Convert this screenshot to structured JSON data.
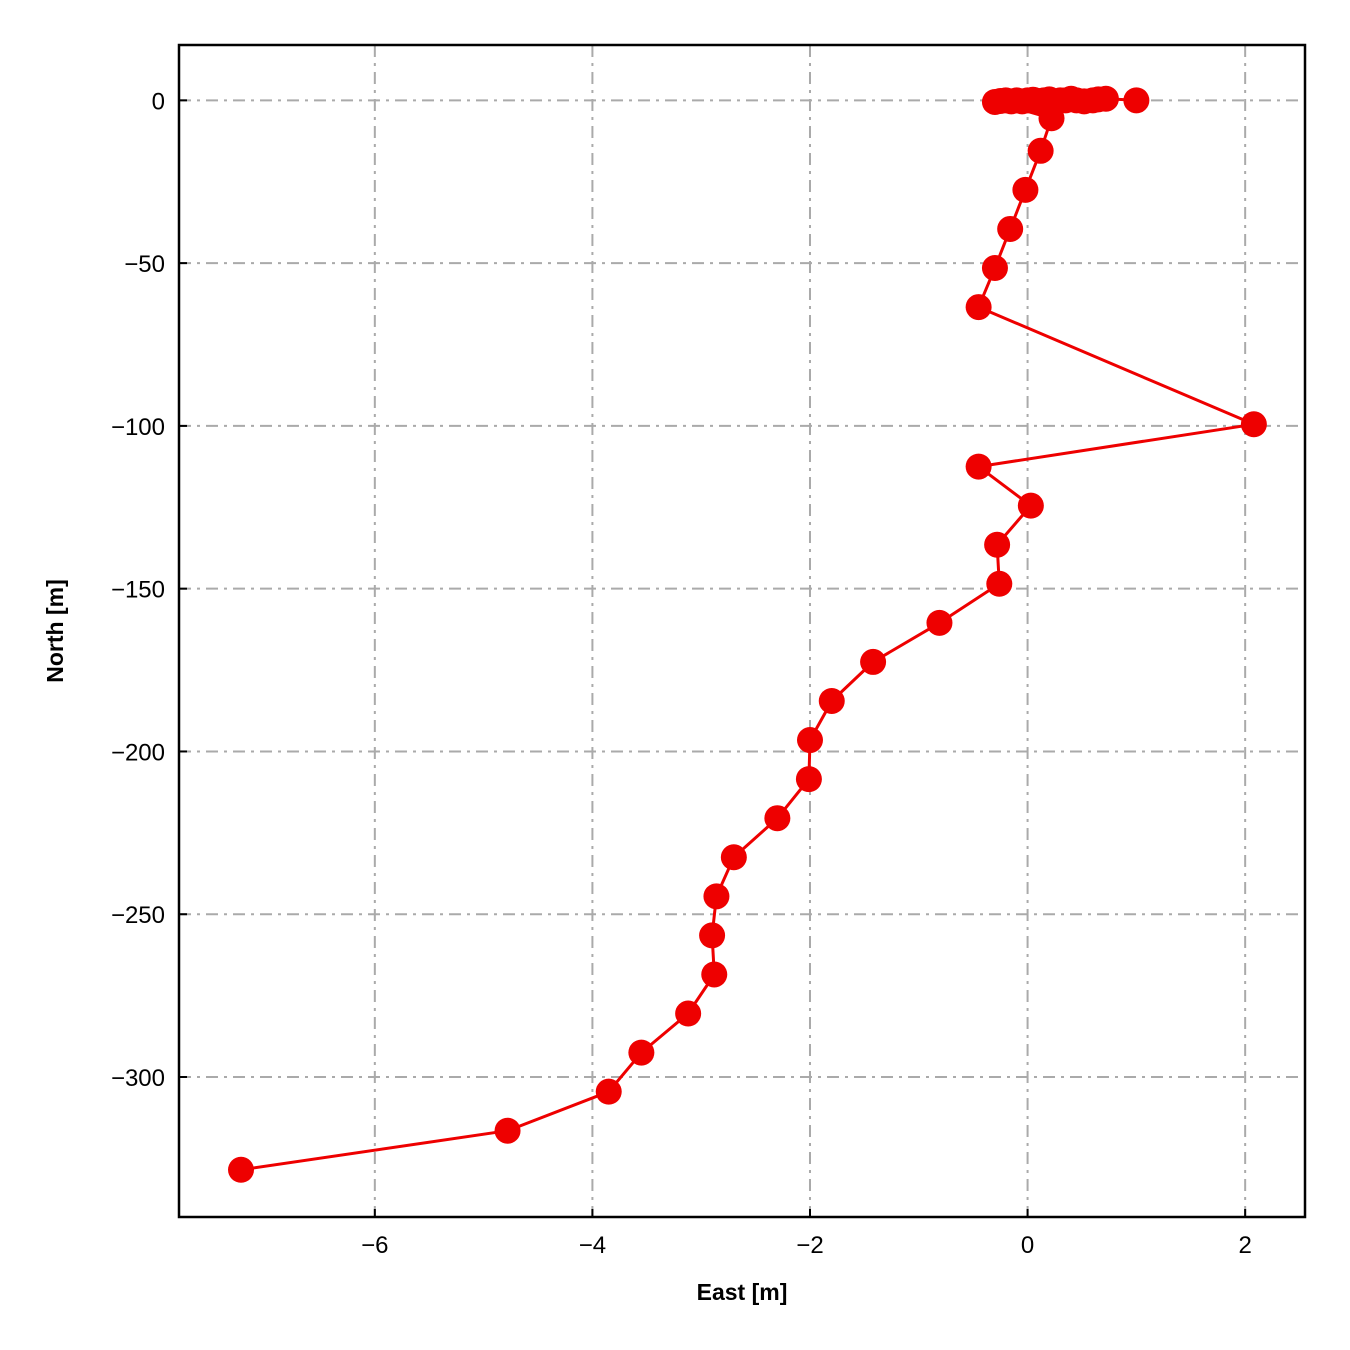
{
  "chart_data": {
    "type": "line",
    "title": "",
    "xlabel": "East [m]",
    "ylabel": "North [m]",
    "xlim": [
      -7.8,
      2.55
    ],
    "ylim": [
      -343,
      17
    ],
    "xticks": [
      -6,
      -4,
      -2,
      0,
      2
    ],
    "yticks": [
      0,
      -50,
      -100,
      -150,
      -200,
      -250,
      -300
    ],
    "xtick_labels": [
      "−6",
      "−4",
      "−2",
      "0",
      "2"
    ],
    "ytick_labels": [
      "0",
      "−50",
      "−100",
      "−150",
      "−200",
      "−250",
      "−300"
    ],
    "grid": true,
    "color": "#ee0000",
    "series": [
      {
        "x": [
          1.0,
          0.72,
          0.65,
          0.6,
          0.52,
          0.45,
          0.4,
          0.35,
          0.3,
          0.25,
          0.2,
          0.15,
          0.1,
          0.05,
          0.0,
          -0.05,
          -0.1,
          -0.15,
          -0.2,
          -0.25,
          -0.3,
          0.22,
          0.12,
          -0.02,
          -0.16,
          -0.3,
          -0.45,
          2.08,
          -0.45,
          0.03,
          -0.28,
          -0.26,
          -0.81,
          -1.42,
          -1.8,
          -2.0,
          -2.01,
          -2.3,
          -2.7,
          -2.86,
          -2.9,
          -2.88,
          -3.12,
          -3.55,
          -3.85,
          -4.78,
          -7.23
        ],
        "y": [
          0,
          0.5,
          0.3,
          0,
          -0.3,
          0,
          0.5,
          0,
          0,
          -0.3,
          0.3,
          0,
          -0.2,
          0.2,
          0,
          -0.3,
          0,
          -0.3,
          0,
          -0.2,
          -0.5,
          -5.5,
          -15.5,
          -27.5,
          -39.5,
          -51.5,
          -63.5,
          -99.5,
          -112.5,
          -124.5,
          -136.5,
          -148.5,
          -160.5,
          -172.5,
          -184.5,
          -196.5,
          -208.5,
          -220.5,
          -232.5,
          -244.5,
          -256.5,
          -268.5,
          -280.5,
          -292.5,
          -304.5,
          -316.5,
          -328.5
        ]
      }
    ]
  }
}
